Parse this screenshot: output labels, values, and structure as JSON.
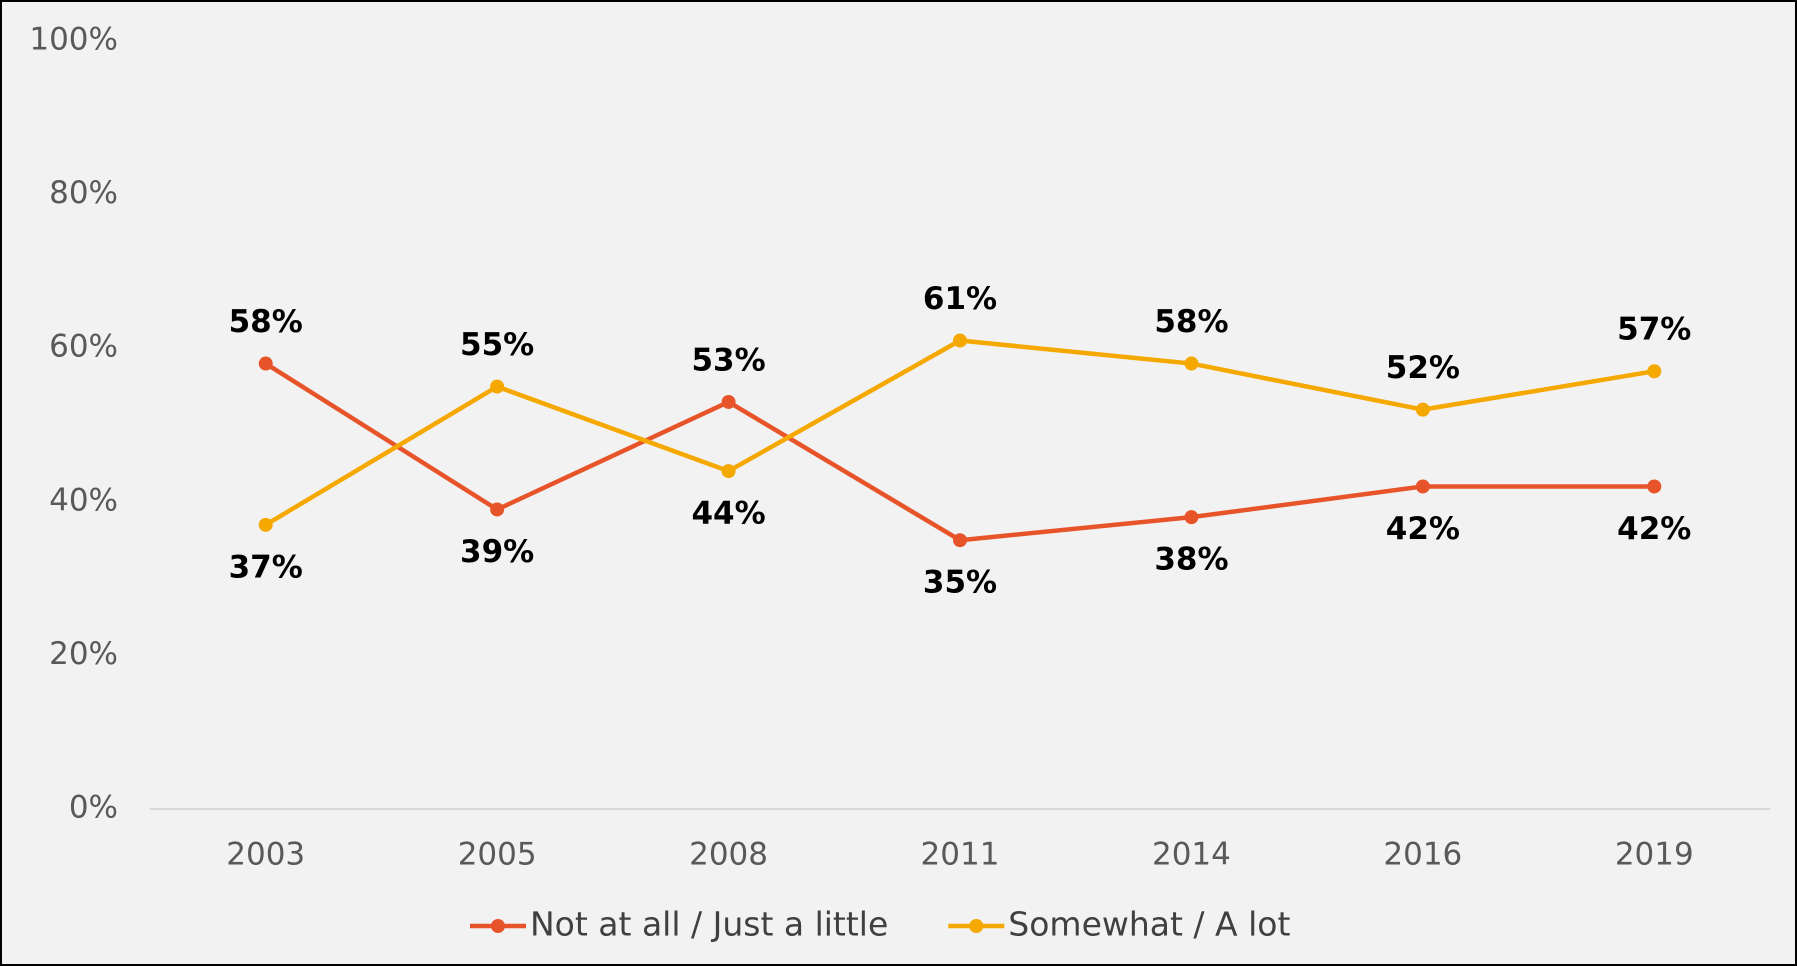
{
  "chart_data": {
    "type": "line",
    "categories": [
      "2003",
      "2005",
      "2008",
      "2011",
      "2014",
      "2016",
      "2019"
    ],
    "series": [
      {
        "name": "Not at all / Just a little",
        "color": "#e8542a",
        "values": [
          58,
          39,
          53,
          35,
          38,
          42,
          42
        ],
        "value_labels": [
          "58%",
          "39%",
          "53%",
          "35%",
          "38%",
          "42%",
          "42%"
        ]
      },
      {
        "name": "Somewhat / A lot",
        "color": "#f5a800",
        "values": [
          37,
          55,
          44,
          61,
          58,
          52,
          57
        ],
        "value_labels": [
          "37%",
          "55%",
          "44%",
          "61%",
          "58%",
          "52%",
          "57%"
        ]
      }
    ],
    "ylim": [
      0,
      100
    ],
    "yticks": [
      {
        "value": 0,
        "label": "0%"
      },
      {
        "value": 20,
        "label": "20%"
      },
      {
        "value": 40,
        "label": "40%"
      },
      {
        "value": 60,
        "label": "60%"
      },
      {
        "value": 80,
        "label": "80%"
      },
      {
        "value": 100,
        "label": "100%"
      }
    ],
    "legend": "bottom"
  }
}
